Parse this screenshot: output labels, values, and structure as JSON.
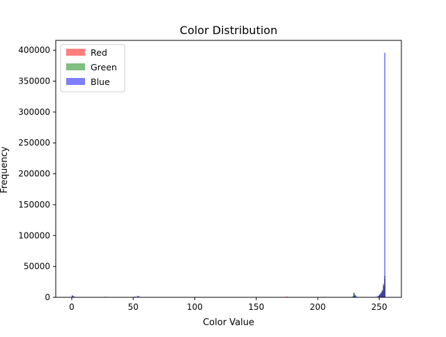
{
  "chart_data": {
    "type": "bar",
    "title": "Color Distribution",
    "xlabel": "Color Value",
    "ylabel": "Frequency",
    "xlim": [
      -13,
      268
    ],
    "ylim": [
      0,
      416000
    ],
    "x_ticks": [
      0,
      50,
      100,
      150,
      200,
      250
    ],
    "y_ticks": [
      0,
      50000,
      100000,
      150000,
      200000,
      250000,
      300000,
      350000,
      400000
    ],
    "legend_position": "top-left",
    "grid": false,
    "bin_width": 1,
    "series": [
      {
        "name": "Red",
        "color": "#ff0000",
        "alpha": 0.5,
        "bins": [
          [
            0,
            2500
          ],
          [
            1,
            1200
          ],
          [
            2,
            800
          ],
          [
            26,
            600
          ],
          [
            27,
            500
          ],
          [
            50,
            700
          ],
          [
            53,
            900
          ],
          [
            76,
            500
          ],
          [
            114,
            400
          ],
          [
            174,
            1200
          ],
          [
            175,
            900
          ],
          [
            203,
            600
          ],
          [
            229,
            3000
          ],
          [
            230,
            1500
          ],
          [
            248,
            1000
          ],
          [
            249,
            2500
          ],
          [
            250,
            4000
          ],
          [
            251,
            6000
          ],
          [
            252,
            10000
          ],
          [
            253,
            22000
          ],
          [
            254,
            30000
          ]
        ]
      },
      {
        "name": "Green",
        "color": "#008000",
        "alpha": 0.5,
        "bins": [
          [
            0,
            2000
          ],
          [
            1,
            1000
          ],
          [
            27,
            700
          ],
          [
            51,
            800
          ],
          [
            54,
            1500
          ],
          [
            65,
            400
          ],
          [
            100,
            400
          ],
          [
            205,
            700
          ],
          [
            228,
            2000
          ],
          [
            229,
            8000
          ],
          [
            230,
            4000
          ],
          [
            250,
            5000
          ],
          [
            251,
            8000
          ],
          [
            252,
            12000
          ],
          [
            253,
            20000
          ],
          [
            254,
            35000
          ]
        ]
      },
      {
        "name": "Blue",
        "color": "#0000ff",
        "alpha": 0.5,
        "bins": [
          [
            0,
            3500
          ],
          [
            1,
            1500
          ],
          [
            2,
            1000
          ],
          [
            27,
            900
          ],
          [
            28,
            600
          ],
          [
            43,
            400
          ],
          [
            51,
            1200
          ],
          [
            53,
            2500
          ],
          [
            54,
            1800
          ],
          [
            76,
            600
          ],
          [
            122,
            300
          ],
          [
            200,
            500
          ],
          [
            206,
            800
          ],
          [
            229,
            6500
          ],
          [
            230,
            3000
          ],
          [
            231,
            1500
          ],
          [
            248,
            1500
          ],
          [
            249,
            3000
          ],
          [
            250,
            5000
          ],
          [
            251,
            7000
          ],
          [
            252,
            10000
          ],
          [
            253,
            18000
          ],
          [
            254,
            396000
          ]
        ]
      }
    ]
  }
}
